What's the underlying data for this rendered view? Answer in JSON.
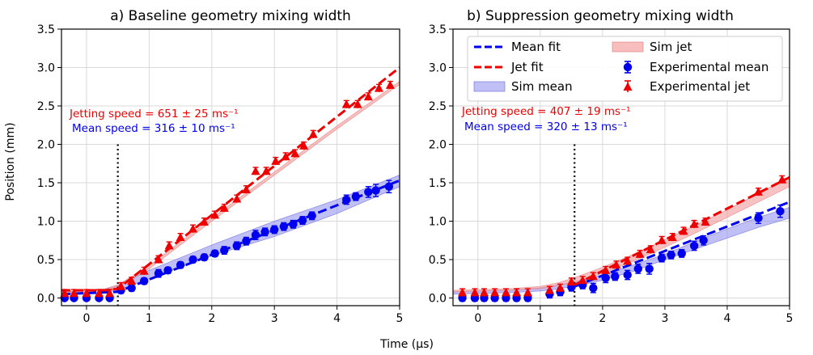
{
  "figure": {
    "xlabel": "Time (µs)",
    "ylabel": "Position (mm)"
  },
  "colors": {
    "mean": "#0000ee",
    "jet": "#ee0000",
    "sim_mean_fill": "#8c8cf0",
    "sim_jet_fill": "#f49a9a",
    "grid": "#d9d9d9"
  },
  "legend": {
    "placement": "top-right of panel b",
    "entries": [
      {
        "key": "mean_fit",
        "label": "Mean fit"
      },
      {
        "key": "jet_fit",
        "label": "Jet fit"
      },
      {
        "key": "sim_mean",
        "label": "Sim mean"
      },
      {
        "key": "sim_jet",
        "label": "Sim jet"
      },
      {
        "key": "exp_mean",
        "label": "Experimental mean"
      },
      {
        "key": "exp_jet",
        "label": "Experimental jet"
      }
    ]
  },
  "chart_data": [
    {
      "type": "line",
      "title": "a) Baseline geometry mixing width",
      "xlim": [
        -0.4,
        5
      ],
      "ylim": [
        -0.1,
        3.5
      ],
      "xticks": [
        0,
        1,
        2,
        3,
        4,
        5
      ],
      "xtick_labels": [
        "0",
        "1",
        "2",
        "3",
        "4",
        "5"
      ],
      "yticks": [
        0,
        0.5,
        1.0,
        1.5,
        2.0,
        2.5,
        3.0,
        3.5
      ],
      "ytick_labels": [
        "0.0",
        "0.5",
        "1.0",
        "1.5",
        "2.0",
        "2.5",
        "3.0",
        "3.5"
      ],
      "grid": true,
      "annotations": [
        {
          "key": "jet_speed",
          "text": "Jetting speed = 651 ± 25 ms⁻¹",
          "color": "jet"
        },
        {
          "key": "mean_speed",
          "text": "Mean speed = 316 ± 10 ms⁻¹",
          "color": "mean"
        }
      ],
      "vline_x": 0.5,
      "fits": {
        "mean": {
          "x": [
            -0.4,
            0.5,
            5.0
          ],
          "y": [
            0.05,
            0.08,
            1.53
          ]
        },
        "jet": {
          "x": [
            -0.4,
            0.3,
            0.5,
            5.0
          ],
          "y": [
            0.1,
            0.1,
            0.12,
            3.0
          ]
        }
      },
      "sim": {
        "mean": {
          "x": [
            -0.4,
            0,
            0.3,
            0.5,
            1,
            2,
            3,
            4,
            5
          ],
          "lo": [
            0.06,
            0.06,
            0.07,
            0.1,
            0.25,
            0.55,
            0.8,
            1.1,
            1.45
          ],
          "hi": [
            0.08,
            0.09,
            0.12,
            0.17,
            0.36,
            0.69,
            1.0,
            1.28,
            1.6
          ]
        },
        "jet": {
          "x": [
            -0.4,
            0,
            0.3,
            0.5,
            1,
            2,
            3,
            4,
            5
          ],
          "lo": [
            0.06,
            0.08,
            0.1,
            0.14,
            0.38,
            1.0,
            1.6,
            2.2,
            2.78
          ],
          "hi": [
            0.08,
            0.1,
            0.12,
            0.17,
            0.42,
            1.04,
            1.64,
            2.24,
            2.82
          ]
        }
      },
      "exp_mean": {
        "x": [
          -0.35,
          -0.2,
          0,
          0.2,
          0.37,
          0.55,
          0.72,
          0.92,
          1.15,
          1.3,
          1.5,
          1.7,
          1.88,
          2.05,
          2.2,
          2.4,
          2.55,
          2.7,
          2.85,
          3.0,
          3.15,
          3.3,
          3.45,
          3.6,
          4.15,
          4.3,
          4.5,
          4.62,
          4.83
        ],
        "y": [
          0.0,
          0.0,
          0.0,
          0.0,
          0.0,
          0.1,
          0.13,
          0.22,
          0.32,
          0.36,
          0.43,
          0.5,
          0.53,
          0.58,
          0.62,
          0.68,
          0.74,
          0.82,
          0.86,
          0.89,
          0.93,
          0.96,
          1.01,
          1.07,
          1.28,
          1.32,
          1.38,
          1.4,
          1.45
        ],
        "err": [
          0.03,
          0.03,
          0.03,
          0.03,
          0.03,
          0.04,
          0.04,
          0.04,
          0.05,
          0.04,
          0.04,
          0.04,
          0.04,
          0.04,
          0.05,
          0.05,
          0.05,
          0.06,
          0.05,
          0.05,
          0.05,
          0.05,
          0.05,
          0.05,
          0.06,
          0.05,
          0.07,
          0.08,
          0.08
        ]
      },
      "exp_jet": {
        "x": [
          -0.35,
          -0.2,
          0,
          0.2,
          0.37,
          0.55,
          0.72,
          0.92,
          1.15,
          1.32,
          1.5,
          1.7,
          1.88,
          2.05,
          2.2,
          2.4,
          2.55,
          2.7,
          2.87,
          3.02,
          3.18,
          3.33,
          3.47,
          3.62,
          4.15,
          4.33,
          4.5,
          4.67,
          4.85
        ],
        "y": [
          0.06,
          0.06,
          0.06,
          0.06,
          0.06,
          0.15,
          0.22,
          0.35,
          0.5,
          0.68,
          0.79,
          0.9,
          0.99,
          1.08,
          1.17,
          1.29,
          1.41,
          1.65,
          1.65,
          1.78,
          1.84,
          1.88,
          1.98,
          2.13,
          2.52,
          2.52,
          2.62,
          2.73,
          2.77
        ]
      }
    },
    {
      "type": "line",
      "title": "b) Suppression geometry mixing width",
      "xlim": [
        -0.4,
        5
      ],
      "ylim": [
        -0.1,
        3.5
      ],
      "xticks": [
        0,
        1,
        2,
        3,
        4,
        5
      ],
      "xtick_labels": [
        "0",
        "1",
        "2",
        "3",
        "4",
        "5"
      ],
      "yticks": [
        0,
        0.5,
        1.0,
        1.5,
        2.0,
        2.5,
        3.0,
        3.5
      ],
      "ytick_labels": [
        "0.0",
        "0.5",
        "1.0",
        "1.5",
        "2.0",
        "2.5",
        "3.0",
        "3.5"
      ],
      "grid": true,
      "annotations": [
        {
          "key": "jet_speed",
          "text": "Jetting speed = 407 ± 19 ms⁻¹",
          "color": "jet"
        },
        {
          "key": "mean_speed",
          "text": "Mean speed = 320 ± 13 ms⁻¹",
          "color": "mean"
        }
      ],
      "vline_x": 1.55,
      "fits": {
        "mean": {
          "x": [
            1.55,
            5.0
          ],
          "y": [
            0.15,
            1.25
          ]
        },
        "jet": {
          "x": [
            1.55,
            5.0
          ],
          "y": [
            0.17,
            1.57
          ]
        }
      },
      "sim": {
        "mean": {
          "x": [
            -0.4,
            0,
            0.5,
            1,
            1.3,
            1.6,
            2,
            2.5,
            3,
            3.5,
            4,
            4.5,
            5
          ],
          "lo": [
            0.05,
            0.06,
            0.07,
            0.09,
            0.12,
            0.16,
            0.23,
            0.35,
            0.5,
            0.64,
            0.78,
            0.92,
            1.04
          ],
          "hi": [
            0.08,
            0.09,
            0.1,
            0.13,
            0.17,
            0.22,
            0.3,
            0.43,
            0.57,
            0.74,
            0.9,
            1.05,
            1.18
          ]
        },
        "jet": {
          "x": [
            -0.4,
            0,
            0.5,
            1,
            1.3,
            1.6,
            2,
            2.5,
            3,
            3.5,
            4,
            4.5,
            5
          ],
          "lo": [
            0.08,
            0.09,
            0.1,
            0.12,
            0.16,
            0.22,
            0.32,
            0.48,
            0.66,
            0.85,
            1.05,
            1.25,
            1.45
          ],
          "hi": [
            0.1,
            0.11,
            0.12,
            0.15,
            0.2,
            0.28,
            0.4,
            0.57,
            0.76,
            0.95,
            1.15,
            1.36,
            1.58
          ]
        }
      },
      "exp_mean": {
        "x": [
          -0.25,
          -0.05,
          0.1,
          0.27,
          0.45,
          0.62,
          0.8,
          1.15,
          1.32,
          1.5,
          1.68,
          1.85,
          2.05,
          2.2,
          2.4,
          2.57,
          2.75,
          2.95,
          3.1,
          3.27,
          3.47,
          3.62,
          4.5,
          4.85
        ],
        "y": [
          0.0,
          0.0,
          0.0,
          0.0,
          0.0,
          0.0,
          0.0,
          0.05,
          0.08,
          0.14,
          0.17,
          0.13,
          0.26,
          0.28,
          0.3,
          0.38,
          0.38,
          0.52,
          0.56,
          0.58,
          0.68,
          0.75,
          1.04,
          1.13
        ],
        "err": [
          0.04,
          0.04,
          0.04,
          0.04,
          0.04,
          0.04,
          0.04,
          0.05,
          0.05,
          0.05,
          0.05,
          0.06,
          0.06,
          0.05,
          0.06,
          0.06,
          0.07,
          0.05,
          0.05,
          0.05,
          0.06,
          0.06,
          0.07,
          0.08
        ]
      },
      "exp_jet": {
        "x": [
          -0.25,
          -0.05,
          0.1,
          0.27,
          0.45,
          0.62,
          0.8,
          1.15,
          1.32,
          1.5,
          1.68,
          1.85,
          2.05,
          2.22,
          2.4,
          2.6,
          2.77,
          2.95,
          3.12,
          3.3,
          3.47,
          3.65,
          4.5,
          4.88
        ],
        "y": [
          0.07,
          0.07,
          0.07,
          0.07,
          0.07,
          0.07,
          0.07,
          0.1,
          0.13,
          0.21,
          0.23,
          0.28,
          0.36,
          0.43,
          0.48,
          0.57,
          0.63,
          0.75,
          0.79,
          0.87,
          0.96,
          0.99,
          1.38,
          1.54
        ]
      }
    }
  ]
}
